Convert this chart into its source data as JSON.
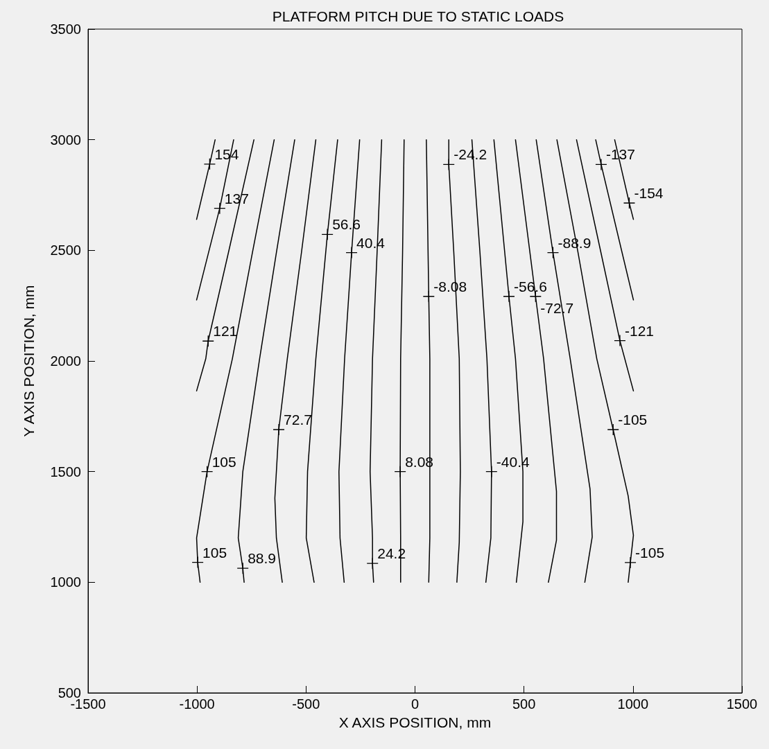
{
  "chart_data": {
    "type": "line",
    "title": "PLATFORM PITCH DUE TO STATIC LOADS",
    "xlabel": "X AXIS POSITION, mm",
    "ylabel": "Y AXIS POSITION, mm",
    "xlim": [
      -1500,
      1500
    ],
    "xticks": [
      -1500,
      -1000,
      -500,
      0,
      500,
      1000,
      1500
    ],
    "ylim": [
      500,
      3500
    ],
    "yticks": [
      500,
      1000,
      1500,
      2000,
      2500,
      3000,
      3500
    ],
    "grid": false,
    "marker": "none",
    "line_style": "solid",
    "series": [
      {
        "color": "#000000",
        "x": [
          -917,
          -942,
          -1002
        ],
        "values": [
          3000,
          2890,
          2640
        ]
      },
      {
        "color": "#000000",
        "x": [
          -832,
          -896,
          -1002
        ],
        "values": [
          3000,
          2690,
          2276
        ]
      },
      {
        "color": "#000000",
        "x": [
          -739,
          -856,
          -949,
          -960,
          -1002
        ],
        "values": [
          3000,
          2490,
          2090,
          2010,
          1865
        ]
      },
      {
        "color": "#000000",
        "x": [
          -646,
          -746,
          -838,
          -954,
          -1002,
          -997,
          -986
        ],
        "values": [
          3000,
          2490,
          2010,
          1500,
          1200,
          1090,
          1000
        ]
      },
      {
        "color": "#000000",
        "x": [
          -552,
          -636,
          -713,
          -790,
          -811,
          -790,
          -784
        ],
        "values": [
          3000,
          2490,
          2010,
          1500,
          1200,
          1063,
          1000
        ]
      },
      {
        "color": "#000000",
        "x": [
          -455,
          -521,
          -586,
          -625,
          -643,
          -636,
          -609
        ],
        "values": [
          3000,
          2490,
          2010,
          1690,
          1380,
          1200,
          1000
        ]
      },
      {
        "color": "#000000",
        "x": [
          -355,
          -402,
          -455,
          -493,
          -499,
          -463
        ],
        "values": [
          3000,
          2572,
          2010,
          1500,
          1200,
          1000
        ]
      },
      {
        "color": "#000000",
        "x": [
          -254,
          -291,
          -323,
          -349,
          -344,
          -325
        ],
        "values": [
          3000,
          2490,
          2010,
          1500,
          1200,
          1000
        ]
      },
      {
        "color": "#000000",
        "x": [
          -153,
          -174,
          -195,
          -206,
          -195,
          -195,
          -190
        ],
        "values": [
          3000,
          2490,
          2010,
          1500,
          1200,
          1085,
          1000
        ]
      },
      {
        "color": "#000000",
        "x": [
          -50,
          -57,
          -66,
          -68,
          -66,
          -66
        ],
        "values": [
          3000,
          2490,
          2010,
          1500,
          1200,
          1000
        ]
      },
      {
        "color": "#000000",
        "x": [
          52,
          63,
          68,
          68,
          68,
          63
        ],
        "values": [
          3000,
          2292,
          2010,
          1500,
          1200,
          1000
        ]
      },
      {
        "color": "#000000",
        "x": [
          155,
          155,
          178,
          203,
          208,
          203,
          192
        ],
        "values": [
          3000,
          2888,
          2490,
          2010,
          1500,
          1180,
          1000
        ]
      },
      {
        "color": "#000000",
        "x": [
          261,
          298,
          330,
          351,
          348,
          325
        ],
        "values": [
          3000,
          2490,
          2010,
          1500,
          1200,
          1000
        ]
      },
      {
        "color": "#000000",
        "x": [
          362,
          431,
          461,
          495,
          495,
          465
        ],
        "values": [
          3000,
          2292,
          2010,
          1500,
          1274,
          1000
        ]
      },
      {
        "color": "#000000",
        "x": [
          461,
          553,
          590,
          649,
          649,
          612
        ],
        "values": [
          3000,
          2292,
          2010,
          1411,
          1190,
          1000
        ]
      },
      {
        "color": "#000000",
        "x": [
          556,
          633,
          712,
          803,
          813,
          779
        ],
        "values": [
          3000,
          2490,
          2010,
          1422,
          1205,
          1000
        ]
      },
      {
        "color": "#000000",
        "x": [
          651,
          748,
          834,
          909,
          978,
          1002,
          988,
          978
        ],
        "values": [
          3000,
          2490,
          2010,
          1690,
          1390,
          1212,
          1089,
          1000
        ]
      },
      {
        "color": "#000000",
        "x": [
          741,
          853,
          940,
          1002
        ],
        "values": [
          3000,
          2490,
          2092,
          1865
        ]
      },
      {
        "color": "#000000",
        "x": [
          829,
          854,
          950,
          1002
        ],
        "values": [
          3000,
          2888,
          2490,
          2276
        ]
      },
      {
        "color": "#000000",
        "x": [
          916,
          983,
          1002
        ],
        "values": [
          3000,
          2714,
          2640
        ]
      }
    ],
    "annotations": [
      {
        "text": "154",
        "x": -942,
        "y": 2890
      },
      {
        "text": "137",
        "x": -896,
        "y": 2690
      },
      {
        "text": "121",
        "x": -949,
        "y": 2090
      },
      {
        "text": "105",
        "x": -954,
        "y": 1500
      },
      {
        "text": "105",
        "x": -997,
        "y": 1090
      },
      {
        "text": "88.9",
        "x": -790,
        "y": 1063
      },
      {
        "text": "72.7",
        "x": -625,
        "y": 1690
      },
      {
        "text": "56.6",
        "x": -402,
        "y": 2572
      },
      {
        "text": "40.4",
        "x": -291,
        "y": 2490
      },
      {
        "text": "24.2",
        "x": -195,
        "y": 1085
      },
      {
        "text": "8.08",
        "x": -68,
        "y": 1500
      },
      {
        "text": "-8.08",
        "x": 63,
        "y": 2292
      },
      {
        "text": "-24.2",
        "x": 155,
        "y": 2888
      },
      {
        "text": "-40.4",
        "x": 351,
        "y": 1500
      },
      {
        "text": "-56.6",
        "x": 431,
        "y": 2292
      },
      {
        "text": "-72.7",
        "x": 553,
        "y": 2292
      },
      {
        "text": "-88.9",
        "x": 633,
        "y": 2490
      },
      {
        "text": "-105",
        "x": 909,
        "y": 1690
      },
      {
        "text": "-105",
        "x": 988,
        "y": 1089
      },
      {
        "text": "-121",
        "x": 940,
        "y": 2092
      },
      {
        "text": "-137",
        "x": 854,
        "y": 2888
      },
      {
        "text": "-154",
        "x": 983,
        "y": 2714
      }
    ]
  }
}
